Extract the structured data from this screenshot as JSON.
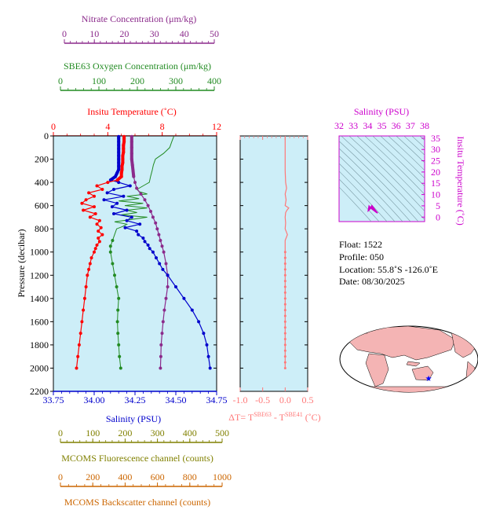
{
  "colors": {
    "panel_bg": "#cdeef8",
    "temperature": "#ff0000",
    "salinity": "#0000cc",
    "oxygen": "#228b22",
    "nitrate": "#8b2a8b",
    "fluorescence": "#808000",
    "backscatter": "#cc6600",
    "delta_t": "#ff7777",
    "ts_axis": "#cc00cc",
    "contour": "#7a9aa4",
    "land": "#f4b4b4",
    "ocean": "#ffffff"
  },
  "axes": {
    "nitrate": {
      "label": "Nitrate Concentration (μm/kg)",
      "ticks": [
        "0",
        "10",
        "20",
        "30",
        "40",
        "50"
      ],
      "range": [
        0,
        50
      ]
    },
    "oxygen": {
      "label": "SBE63 Oxygen Concentration (μm/kg)",
      "ticks": [
        "0",
        "100",
        "200",
        "300",
        "400"
      ],
      "range": [
        0,
        400
      ]
    },
    "temperature": {
      "label": "Insitu Temperature (˚C)",
      "ticks": [
        "0",
        "4",
        "8",
        "12"
      ],
      "range": [
        0,
        12
      ]
    },
    "pressure": {
      "label": "Pressure (decibar)",
      "ticks": [
        "0",
        "200",
        "400",
        "600",
        "800",
        "1000",
        "1200",
        "1400",
        "1600",
        "1800",
        "2000",
        "2200"
      ],
      "range": [
        0,
        2200
      ]
    },
    "salinity": {
      "label": "Salinity (PSU)",
      "ticks": [
        "33.75",
        "34.00",
        "34.25",
        "34.50",
        "34.75"
      ],
      "range": [
        33.75,
        34.75
      ]
    },
    "delta_t": {
      "label_prefix": "ΔT= T",
      "sup1": "SBE63",
      "label_mid": " - T",
      "sup2": "SBE41",
      "label_suffix": " (˚C)",
      "ticks": [
        "-1.0",
        "-0.5",
        "0.0",
        "0.5"
      ],
      "range": [
        -1.0,
        0.5
      ]
    },
    "fluorescence": {
      "label": "MCOMS Fluorescence channel (counts)",
      "ticks": [
        "0",
        "100",
        "200",
        "300",
        "400",
        "500"
      ],
      "range": [
        0,
        500
      ]
    },
    "backscatter": {
      "label": "MCOMS Backscatter channel (counts)",
      "ticks": [
        "0",
        "200",
        "400",
        "600",
        "800",
        "1000"
      ],
      "range": [
        0,
        1000
      ]
    },
    "ts_salinity": {
      "label": "Salinity (PSU)",
      "ticks": [
        "32",
        "33",
        "34",
        "35",
        "36",
        "37",
        "38"
      ],
      "range": [
        32,
        38
      ]
    },
    "ts_temperature": {
      "label": "Insitu Temperature (˚C)",
      "ticks": [
        "0",
        "5",
        "10",
        "15",
        "20",
        "25",
        "30",
        "35"
      ],
      "range": [
        -2,
        36
      ]
    }
  },
  "float_info": {
    "float": "Float:  1522",
    "profile": "Profile:  050",
    "location": "Location:  55.8˚S  -126.0˚E",
    "date": "Date:  08/30/2025"
  },
  "chart_data": [
    {
      "type": "line",
      "name": "Insitu Temperature",
      "x_units": "degC",
      "pressure": [
        5,
        20,
        50,
        80,
        110,
        140,
        170,
        200,
        230,
        260,
        290,
        320,
        350,
        380,
        400,
        430,
        460,
        490,
        520,
        550,
        580,
        610,
        640,
        670,
        700,
        730,
        760,
        790,
        820,
        850,
        880,
        910,
        940,
        970,
        1000,
        1050,
        1100,
        1150,
        1200,
        1300,
        1400,
        1500,
        1600,
        1700,
        1800,
        1900,
        2000
      ],
      "values": [
        5.2,
        5.2,
        5.2,
        5.15,
        5.15,
        5.15,
        5.1,
        5.1,
        5.1,
        5.05,
        5.05,
        5.0,
        5.0,
        4.7,
        4.0,
        3.2,
        3.6,
        2.6,
        3.0,
        2.4,
        2.1,
        3.0,
        2.2,
        3.1,
        2.7,
        3.4,
        3.2,
        3.5,
        3.3,
        3.6,
        3.3,
        3.4,
        3.2,
        3.1,
        3.0,
        2.8,
        2.7,
        2.6,
        2.5,
        2.4,
        2.3,
        2.2,
        2.1,
        2.0,
        1.9,
        1.8,
        1.7
      ]
    },
    {
      "type": "line",
      "name": "Salinity",
      "x_units": "PSU",
      "pressure": [
        5,
        20,
        50,
        80,
        110,
        140,
        170,
        200,
        230,
        260,
        290,
        320,
        350,
        380,
        400,
        430,
        460,
        490,
        520,
        550,
        580,
        610,
        640,
        670,
        700,
        730,
        760,
        790,
        820,
        850,
        880,
        910,
        940,
        970,
        1000,
        1050,
        1100,
        1150,
        1200,
        1300,
        1400,
        1500,
        1600,
        1700,
        1800,
        1900,
        2000
      ],
      "values": [
        34.15,
        34.15,
        34.15,
        34.15,
        34.15,
        34.15,
        34.15,
        34.15,
        34.15,
        34.15,
        34.15,
        34.14,
        34.13,
        34.1,
        34.15,
        34.22,
        34.12,
        34.08,
        34.18,
        34.06,
        34.14,
        34.11,
        34.2,
        34.12,
        34.23,
        34.2,
        34.28,
        34.19,
        34.26,
        34.27,
        34.3,
        34.31,
        34.33,
        34.34,
        34.36,
        34.38,
        34.4,
        34.42,
        34.45,
        34.5,
        34.55,
        34.6,
        34.64,
        34.67,
        34.69,
        34.7,
        34.71
      ]
    },
    {
      "type": "line",
      "name": "SBE63 Oxygen Concentration",
      "x_units": "umol/kg",
      "pressure": [
        5,
        50,
        100,
        150,
        200,
        250,
        300,
        350,
        400,
        420,
        440,
        460,
        480,
        500,
        520,
        540,
        560,
        580,
        600,
        620,
        640,
        660,
        680,
        700,
        720,
        740,
        760,
        780,
        800,
        850,
        900,
        950,
        1000,
        1100,
        1200,
        1300,
        1400,
        1500,
        1600,
        1700,
        1800,
        1900,
        2000
      ],
      "values": [
        295,
        290,
        285,
        270,
        250,
        245,
        242,
        238,
        235,
        225,
        215,
        205,
        210,
        230,
        180,
        210,
        160,
        220,
        175,
        230,
        180,
        205,
        165,
        230,
        190,
        150,
        180,
        170,
        155,
        150,
        145,
        140,
        140,
        145,
        150,
        155,
        160,
        158,
        157,
        158,
        160,
        162,
        165
      ]
    },
    {
      "type": "line",
      "name": "Nitrate Concentration",
      "x_units": "umol/kg",
      "pressure": [
        5,
        50,
        100,
        150,
        200,
        250,
        300,
        350,
        400,
        450,
        500,
        550,
        600,
        650,
        700,
        750,
        800,
        850,
        900,
        950,
        1000,
        1100,
        1200,
        1300,
        1400,
        1500,
        1600,
        1700,
        1800,
        1900,
        2000
      ],
      "values": [
        24,
        24,
        24,
        24,
        24,
        24.2,
        24.4,
        24.6,
        25,
        25.5,
        26.8,
        28,
        29,
        29.8,
        30.5,
        31.3,
        31.8,
        32.3,
        32.8,
        33.3,
        33.8,
        34.5,
        35,
        35,
        34.5,
        34,
        33.6,
        33.3,
        33,
        32.9,
        32.8
      ]
    },
    {
      "type": "line",
      "name": "Delta T",
      "x_units": "degC",
      "pressure": [
        5,
        100,
        200,
        300,
        400,
        450,
        500,
        550,
        600,
        620,
        640,
        660,
        700,
        750,
        800,
        850,
        900,
        1000,
        1200,
        1400,
        1600,
        1800,
        2000
      ],
      "values": [
        0.0,
        0.0,
        0.0,
        0.0,
        0.01,
        0.03,
        0.0,
        0.02,
        0.0,
        0.08,
        0.04,
        0.01,
        0.0,
        0.01,
        0.0,
        0.05,
        0.0,
        0.0,
        0.0,
        0.0,
        0.0,
        0.0,
        0.0
      ]
    },
    {
      "type": "scatter",
      "name": "T-S diagram",
      "salinity": [
        34.05,
        34.1,
        34.15,
        34.2,
        34.25,
        34.3,
        34.4,
        34.5,
        34.6,
        34.7,
        34.6,
        34.45,
        34.3,
        34.2,
        34.1
      ],
      "temperature": [
        2.8,
        3.1,
        3.5,
        4.0,
        4.6,
        5.1,
        4.3,
        3.4,
        2.6,
        1.8,
        2.2,
        2.9,
        3.6,
        4.2,
        4.9
      ]
    },
    {
      "type": "scatter",
      "name": "float-location",
      "lon": [
        -126.0
      ],
      "lat": [
        -55.8
      ]
    }
  ]
}
